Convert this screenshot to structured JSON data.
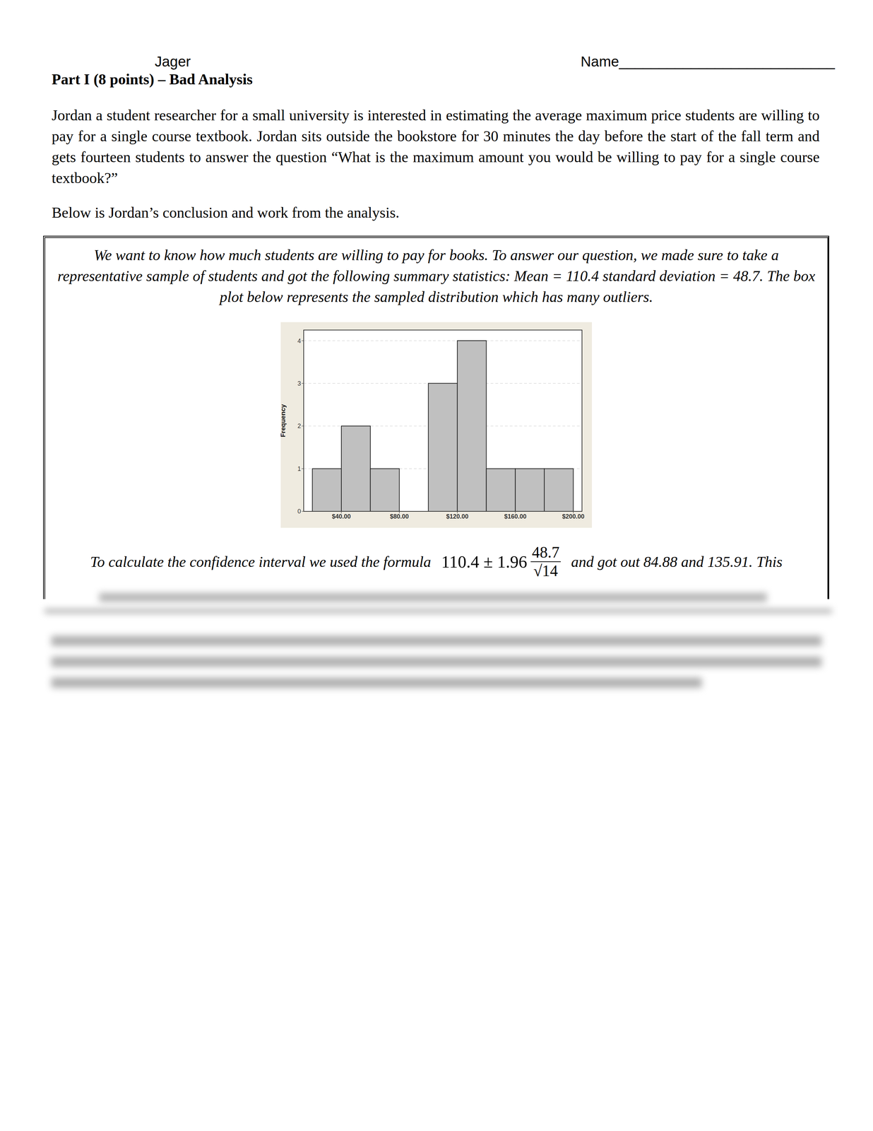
{
  "header": {
    "left": "Jager",
    "right": "Name___________________________"
  },
  "title": "Part I (8 points) – Bad Analysis",
  "paragraphs": [
    "Jordan a student researcher for a small university is interested in estimating the average maximum price students are willing to pay for a single course textbook. Jordan sits outside the bookstore for 30 minutes the day before the start of the fall term and gets fourteen students to answer the question “What is the maximum amount you would be willing to pay for a single course textbook?”",
    "Below is Jordan’s conclusion and work from the analysis."
  ],
  "box": {
    "text": "We want to know how much students are willing to pay for books. To answer our question, we made sure to take a representative sample of students and got the following summary statistics: Mean = 110.4 standard deviation = 48.7. The box plot below represents the sampled distribution which has many outliers.",
    "formula": {
      "before": "To calculate the confidence interval we used the formula",
      "expression": "110.4 ± 1.96",
      "numerator": "48.7",
      "denominator": "√14",
      "after": "and got out 84.88 and 135.91. This"
    }
  },
  "chart_data": {
    "type": "histogram",
    "ylabel": "Frequency",
    "bins": [
      20,
      40,
      60,
      80,
      100,
      120,
      140,
      160,
      180,
      200
    ],
    "values": [
      1,
      2,
      1,
      0,
      3,
      4,
      1,
      1,
      1
    ],
    "color": "#c0c0c0",
    "xlim": [
      14,
      206
    ],
    "xticks": [
      {
        "value": 40,
        "label": "$40.00"
      },
      {
        "value": 80,
        "label": "$80.00"
      },
      {
        "value": 120,
        "label": "$120.00"
      },
      {
        "value": 160,
        "label": "$160.00"
      },
      {
        "value": 200,
        "label": "$200.00"
      }
    ],
    "ylim": [
      0,
      4.25
    ],
    "yticks": [
      0,
      1,
      2,
      3,
      4
    ],
    "grid": true
  }
}
